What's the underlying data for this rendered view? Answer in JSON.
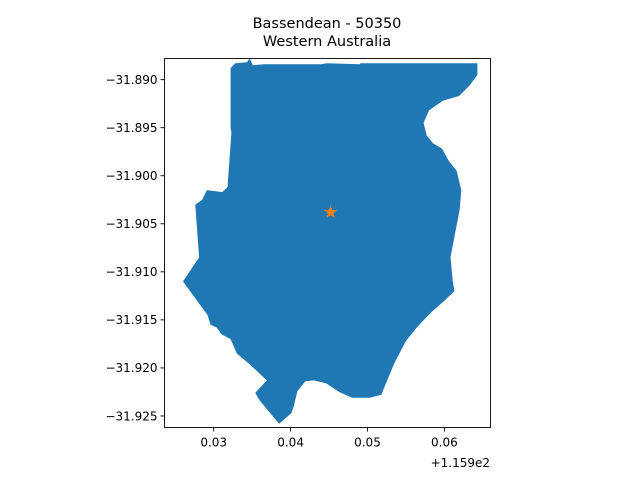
{
  "chart_data": {
    "type": "map",
    "title": "Bassendean - 50350",
    "subtitle": "Western Australia",
    "xlabel": "",
    "ylabel": "",
    "x_offset_label": "+1.159e2",
    "xlim": [
      115.9236,
      115.966
    ],
    "ylim": [
      -31.9262,
      -31.8878
    ],
    "x_ticks": [
      {
        "value": 115.93,
        "label": "0.03"
      },
      {
        "value": 115.94,
        "label": "0.04"
      },
      {
        "value": 115.95,
        "label": "0.05"
      },
      {
        "value": 115.96,
        "label": "0.06"
      }
    ],
    "y_ticks": [
      {
        "value": -31.89,
        "label": "−31.890"
      },
      {
        "value": -31.895,
        "label": "−31.895"
      },
      {
        "value": -31.9,
        "label": "−31.900"
      },
      {
        "value": -31.905,
        "label": "−31.905"
      },
      {
        "value": -31.91,
        "label": "−31.910"
      },
      {
        "value": -31.915,
        "label": "−31.915"
      },
      {
        "value": -31.92,
        "label": "−31.920"
      },
      {
        "value": -31.925,
        "label": "−31.925"
      }
    ],
    "region_color": "#1f77b4",
    "marker_color": "#ff7f0e",
    "centroid": {
      "x": 115.9452,
      "y": -31.9038,
      "marker": "star"
    },
    "boundary": [
      [
        115.9322,
        -31.8888
      ],
      [
        115.9328,
        -31.8883
      ],
      [
        115.9343,
        -31.8882
      ],
      [
        115.9347,
        -31.8878
      ],
      [
        115.9351,
        -31.8885
      ],
      [
        115.9365,
        -31.8884
      ],
      [
        115.944,
        -31.8884
      ],
      [
        115.9447,
        -31.8883
      ],
      [
        115.949,
        -31.8884
      ],
      [
        115.9491,
        -31.8883
      ],
      [
        115.9643,
        -31.8883
      ],
      [
        115.9643,
        -31.8895
      ],
      [
        115.9633,
        -31.8906
      ],
      [
        115.9619,
        -31.8917
      ],
      [
        115.9598,
        -31.8922
      ],
      [
        115.958,
        -31.8932
      ],
      [
        115.9573,
        -31.8945
      ],
      [
        115.9577,
        -31.8958
      ],
      [
        115.9585,
        -31.8966
      ],
      [
        115.9597,
        -31.8972
      ],
      [
        115.9606,
        -31.8985
      ],
      [
        115.9616,
        -31.8995
      ],
      [
        115.9622,
        -31.9015
      ],
      [
        115.962,
        -31.9035
      ],
      [
        115.9614,
        -31.906
      ],
      [
        115.9608,
        -31.9085
      ],
      [
        115.9611,
        -31.911
      ],
      [
        115.9613,
        -31.912
      ],
      [
        115.96,
        -31.913
      ],
      [
        115.9583,
        -31.9142
      ],
      [
        115.9565,
        -31.9157
      ],
      [
        115.955,
        -31.9172
      ],
      [
        115.9535,
        -31.9195
      ],
      [
        115.9522,
        -31.922
      ],
      [
        115.9518,
        -31.9228
      ],
      [
        115.9503,
        -31.9231
      ],
      [
        115.948,
        -31.9231
      ],
      [
        115.9463,
        -31.9225
      ],
      [
        115.9446,
        -31.9216
      ],
      [
        115.943,
        -31.9213
      ],
      [
        115.9419,
        -31.9214
      ],
      [
        115.9409,
        -31.9224
      ],
      [
        115.9404,
        -31.924
      ],
      [
        115.9401,
        -31.9247
      ],
      [
        115.9385,
        -31.9258
      ],
      [
        115.936,
        -31.9234
      ],
      [
        115.9354,
        -31.9226
      ],
      [
        115.9369,
        -31.9213
      ],
      [
        115.9345,
        -31.9195
      ],
      [
        115.933,
        -31.9185
      ],
      [
        115.9322,
        -31.917
      ],
      [
        115.931,
        -31.9165
      ],
      [
        115.9304,
        -31.9158
      ],
      [
        115.9296,
        -31.9155
      ],
      [
        115.9292,
        -31.9145
      ],
      [
        115.926,
        -31.911
      ],
      [
        115.9281,
        -31.9085
      ],
      [
        115.9276,
        -31.903
      ],
      [
        115.9285,
        -31.9025
      ],
      [
        115.9291,
        -31.9015
      ],
      [
        115.9311,
        -31.9017
      ],
      [
        115.9318,
        -31.9012
      ],
      [
        115.9323,
        -31.8955
      ],
      [
        115.9322,
        -31.895
      ],
      [
        115.9322,
        -31.8888
      ]
    ]
  }
}
